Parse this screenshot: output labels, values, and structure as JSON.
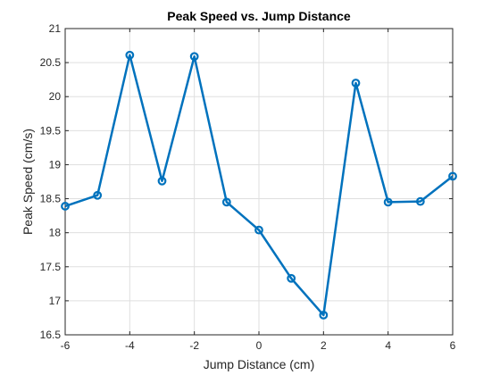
{
  "chart_data": {
    "type": "line",
    "title": "Peak Speed vs. Jump Distance",
    "xlabel": "Jump Distance (cm)",
    "ylabel": "Peak Speed (cm/s)",
    "xlim": [
      -6,
      6
    ],
    "ylim": [
      16.5,
      21
    ],
    "xticks": [
      -6,
      -4,
      -2,
      0,
      2,
      4,
      6
    ],
    "yticks": [
      16.5,
      17,
      17.5,
      18,
      18.5,
      19,
      19.5,
      20,
      20.5,
      21
    ],
    "xtick_labels": [
      "-6",
      "-4",
      "-2",
      "0",
      "2",
      "4",
      "6"
    ],
    "ytick_labels": [
      "16.5",
      "17",
      "17.5",
      "18",
      "18.5",
      "19",
      "19.5",
      "20",
      "20.5",
      "21"
    ],
    "grid": true,
    "series": [
      {
        "color": "#0072BD",
        "marker": "circle",
        "x": [
          -6,
          -5,
          -4,
          -3,
          -2,
          -1,
          0,
          1,
          2,
          3,
          4,
          5,
          6
        ],
        "y": [
          18.39,
          18.55,
          20.61,
          18.76,
          20.59,
          18.45,
          18.04,
          17.33,
          16.79,
          20.2,
          18.45,
          18.46,
          18.83
        ]
      }
    ]
  }
}
